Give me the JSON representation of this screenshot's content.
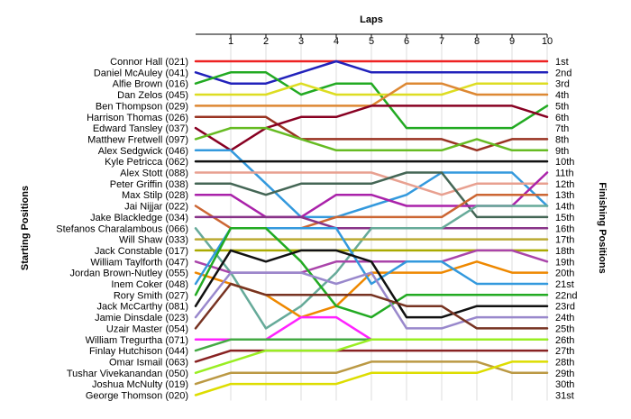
{
  "chart_data": {
    "type": "line",
    "title": "",
    "x_axis_title": "Laps",
    "left_axis_title": "Starting Positions",
    "right_axis_title": "Finishing Positions",
    "laps": [
      1,
      2,
      3,
      4,
      5,
      6,
      7,
      8,
      9,
      10
    ],
    "starting_positions": [
      "Connor Hall (021)",
      "Daniel McAuley (041)",
      "Alfie Brown (016)",
      "Dan Zelos (045)",
      "Ben Thompson (029)",
      "Harrison Thomas (026)",
      "Edward Tansley (037)",
      "Matthew Fretwell (097)",
      "Alex Sedgwick (046)",
      "Kyle Petricca (062)",
      "Alex Stott (088)",
      "Peter Griffin (038)",
      "Max Stilp (028)",
      "Jai Nijjar (022)",
      "Jake Blackledge (034)",
      "Stefanos Charalambous (066)",
      "Will Shaw (033)",
      "Jack Constable (017)",
      "William Taylforth (047)",
      "Jordan Brown-Nutley (055)",
      "Inem Coker (048)",
      "Rory Smith (027)",
      "Jack McCarthy (081)",
      "Jamie Dinsdale (023)",
      "Uzair Master (054)",
      "William Tregurtha (071)",
      "Finlay Hutchison (044)",
      "Omar Ismail (063)",
      "Tushar Vivekanandan (050)",
      "Joshua McNulty (019)",
      "George Thomson (020)"
    ],
    "finishing_positions": [
      "1st",
      "2nd",
      "3rd",
      "4th",
      "5th",
      "6th",
      "7th",
      "8th",
      "9th",
      "10th",
      "11th",
      "12th",
      "13th",
      "14th",
      "15th",
      "16th",
      "17th",
      "18th",
      "19th",
      "20th",
      "21st",
      "22nd",
      "23rd",
      "24th",
      "25th",
      "26th",
      "27th",
      "28th",
      "29th",
      "30th",
      "31st"
    ],
    "series": [
      {
        "start": 1,
        "color": "#ee2222",
        "positions": [
          1,
          1,
          1,
          1,
          1,
          1,
          1,
          1,
          1,
          1
        ]
      },
      {
        "start": 2,
        "color": "#2222bb",
        "positions": [
          3,
          3,
          2,
          1,
          2,
          2,
          2,
          2,
          2,
          2
        ]
      },
      {
        "start": 3,
        "color": "#22aa22",
        "positions": [
          2,
          2,
          4,
          3,
          3,
          7,
          7,
          7,
          7,
          5
        ]
      },
      {
        "start": 4,
        "color": "#dddd22",
        "positions": [
          4,
          4,
          3,
          4,
          4,
          4,
          4,
          3,
          3,
          3
        ]
      },
      {
        "start": 5,
        "color": "#dd8833",
        "positions": [
          5,
          5,
          5,
          5,
          5,
          3,
          3,
          4,
          4,
          4
        ]
      },
      {
        "start": 6,
        "color": "#993322",
        "positions": [
          6,
          6,
          8,
          8,
          8,
          8,
          8,
          9,
          8,
          8
        ]
      },
      {
        "start": 7,
        "color": "#880022",
        "positions": [
          9,
          7,
          6,
          6,
          5,
          5,
          5,
          5,
          5,
          6
        ]
      },
      {
        "start": 8,
        "color": "#66bb22",
        "positions": [
          7,
          7,
          8,
          9,
          9,
          9,
          9,
          8,
          9,
          9
        ]
      },
      {
        "start": 9,
        "color": "#3399dd",
        "positions": [
          9,
          12,
          15,
          15,
          14,
          13,
          11,
          11,
          11,
          14
        ]
      },
      {
        "start": 10,
        "color": "#111111",
        "positions": [
          10,
          10,
          10,
          10,
          10,
          10,
          10,
          10,
          10,
          10
        ]
      },
      {
        "start": 11,
        "color": "#e8a090",
        "positions": [
          11,
          11,
          11,
          11,
          11,
          12,
          13,
          12,
          12,
          12
        ]
      },
      {
        "start": 12,
        "color": "#446655",
        "positions": [
          12,
          13,
          12,
          12,
          12,
          11,
          11,
          15,
          15,
          15
        ]
      },
      {
        "start": 13,
        "color": "#aa22aa",
        "positions": [
          13,
          15,
          15,
          13,
          13,
          14,
          14,
          14,
          14,
          11
        ]
      },
      {
        "start": 14,
        "color": "#cc6633",
        "positions": [
          16,
          16,
          16,
          15,
          15,
          15,
          15,
          13,
          13,
          13
        ]
      },
      {
        "start": 15,
        "color": "#883388",
        "positions": [
          15,
          15,
          15,
          16,
          16,
          16,
          16,
          16,
          16,
          16
        ]
      },
      {
        "start": 16,
        "color": "#66aa99",
        "positions": [
          20,
          25,
          23,
          20,
          16,
          16,
          16,
          14,
          14,
          14
        ]
      },
      {
        "start": 17,
        "color": "#bbaa33",
        "positions": [
          17,
          17,
          17,
          17,
          17,
          17,
          17,
          17,
          17,
          17
        ]
      },
      {
        "start": 18,
        "color": "#aaaa00",
        "positions": [
          18,
          18,
          18,
          18,
          18,
          18,
          18,
          18,
          18,
          18
        ]
      },
      {
        "start": 19,
        "color": "#aa44aa",
        "positions": [
          20,
          20,
          20,
          19,
          19,
          19,
          19,
          18,
          18,
          19
        ]
      },
      {
        "start": 20,
        "color": "#ee8800",
        "positions": [
          21,
          22,
          24,
          23,
          20,
          20,
          20,
          19,
          20,
          20
        ]
      },
      {
        "start": 21,
        "color": "#3399dd",
        "positions": [
          16,
          16,
          16,
          16,
          21,
          19,
          19,
          21,
          21,
          21
        ]
      },
      {
        "start": 22,
        "color": "#22aa22",
        "positions": [
          16,
          16,
          19,
          23,
          24,
          22,
          22,
          22,
          22,
          22
        ]
      },
      {
        "start": 23,
        "color": "#111111",
        "positions": [
          18,
          19,
          18,
          18,
          19,
          24,
          24,
          23,
          23,
          23
        ]
      },
      {
        "start": 24,
        "color": "#9988cc",
        "positions": [
          20,
          20,
          20,
          21,
          20,
          25,
          25,
          24,
          24,
          24
        ]
      },
      {
        "start": 25,
        "color": "#773322",
        "positions": [
          21,
          22,
          22,
          22,
          22,
          23,
          23,
          25,
          25,
          25
        ]
      },
      {
        "start": 26,
        "color": "#ff22ff",
        "positions": [
          26,
          26,
          24,
          24,
          26,
          26,
          26,
          26,
          26,
          26
        ]
      },
      {
        "start": 27,
        "color": "#44aa44",
        "positions": [
          26,
          26,
          26,
          26,
          26,
          26,
          26,
          26,
          26,
          26
        ]
      },
      {
        "start": 28,
        "color": "#882222",
        "positions": [
          27,
          27,
          27,
          27,
          27,
          27,
          27,
          27,
          27,
          27
        ]
      },
      {
        "start": 29,
        "color": "#99ee22",
        "positions": [
          28,
          27,
          27,
          27,
          26,
          26,
          26,
          26,
          26,
          26
        ]
      },
      {
        "start": 30,
        "color": "#bb9944",
        "positions": [
          29,
          29,
          29,
          29,
          28,
          28,
          28,
          28,
          29,
          29
        ]
      },
      {
        "start": 31,
        "color": "#dddd00",
        "positions": [
          30,
          30,
          30,
          30,
          29,
          29,
          29,
          29,
          28,
          28
        ]
      }
    ]
  }
}
